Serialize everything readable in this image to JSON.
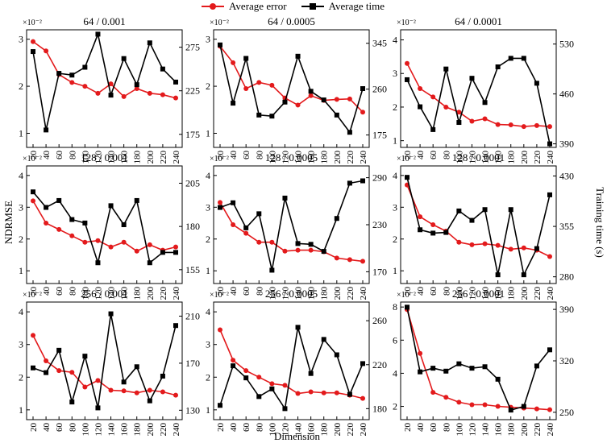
{
  "legend": {
    "error_label": "Average error",
    "time_label": "Average time",
    "error_color": "#e31a1c",
    "time_color": "#000000"
  },
  "axes_labels": {
    "xlabel": "Dimension",
    "ylabel_left": "NDRMSE",
    "ylabel_right": "Training time (s)",
    "left_scale_note": "×10⁻²"
  },
  "chart_data": [
    {
      "type": "line",
      "title": "64 / 0.001",
      "x": [
        20,
        40,
        60,
        80,
        100,
        120,
        140,
        160,
        180,
        200,
        220,
        240
      ],
      "y_left_ticks": [
        1,
        2,
        3
      ],
      "y_left_lim": [
        0.7,
        3.2
      ],
      "y_right_ticks": [
        175,
        225,
        275
      ],
      "y_right_lim": [
        160,
        295
      ],
      "series": [
        {
          "name": "Average error",
          "axis": "left",
          "values": [
            2.95,
            2.75,
            2.25,
            2.08,
            2.0,
            1.85,
            2.05,
            1.78,
            1.95,
            1.85,
            1.82,
            1.75
          ]
        },
        {
          "name": "Average time",
          "axis": "right",
          "values": [
            270,
            180,
            245,
            243,
            252,
            290,
            220,
            262,
            232,
            280,
            250,
            235
          ]
        }
      ]
    },
    {
      "type": "line",
      "title": "64 / 0.0005",
      "x": [
        20,
        40,
        60,
        80,
        100,
        120,
        140,
        160,
        180,
        200,
        220,
        240
      ],
      "y_left_ticks": [
        1,
        2,
        3
      ],
      "y_left_lim": [
        0.7,
        3.2
      ],
      "y_right_ticks": [
        175,
        260,
        345
      ],
      "y_right_lim": [
        152,
        370
      ],
      "series": [
        {
          "name": "Average error",
          "axis": "left",
          "values": [
            2.85,
            2.5,
            1.95,
            2.08,
            2.02,
            1.75,
            1.6,
            1.8,
            1.7,
            1.72,
            1.73,
            1.45
          ]
        },
        {
          "name": "Average time",
          "axis": "right",
          "values": [
            342,
            234,
            317,
            212,
            210,
            236,
            321,
            256,
            240,
            212,
            180,
            261
          ]
        }
      ]
    },
    {
      "type": "line",
      "title": "64 / 0.0001",
      "x": [
        20,
        40,
        60,
        80,
        100,
        120,
        140,
        160,
        180,
        200,
        220,
        240
      ],
      "y_left_ticks": [
        1,
        2,
        3,
        4
      ],
      "y_left_lim": [
        0.8,
        4.3
      ],
      "y_right_ticks": [
        390,
        460,
        530
      ],
      "y_right_lim": [
        385,
        550
      ],
      "series": [
        {
          "name": "Average error",
          "axis": "left",
          "values": [
            3.3,
            2.55,
            2.3,
            2.0,
            1.85,
            1.58,
            1.65,
            1.48,
            1.47,
            1.42,
            1.45,
            1.42
          ]
        },
        {
          "name": "Average time",
          "axis": "right",
          "values": [
            480,
            442,
            410,
            495,
            420,
            482,
            448,
            498,
            510,
            510,
            475,
            390
          ]
        }
      ]
    },
    {
      "type": "line",
      "title": "128 / 0.001",
      "x": [
        20,
        40,
        60,
        80,
        100,
        120,
        140,
        160,
        180,
        200,
        220,
        240
      ],
      "y_left_ticks": [
        1,
        2,
        3,
        4
      ],
      "y_left_lim": [
        0.6,
        4.3
      ],
      "y_right_ticks": [
        155,
        180,
        205
      ],
      "y_right_lim": [
        147,
        215
      ],
      "series": [
        {
          "name": "Average error",
          "axis": "left",
          "values": [
            3.2,
            2.5,
            2.3,
            2.1,
            1.9,
            1.95,
            1.75,
            1.9,
            1.62,
            1.82,
            1.65,
            1.75
          ]
        },
        {
          "name": "Average time",
          "axis": "right",
          "values": [
            200,
            191,
            195,
            184,
            182,
            159,
            192,
            181,
            195,
            159,
            165,
            165
          ]
        }
      ]
    },
    {
      "type": "line",
      "title": "128 / 0.0005",
      "x": [
        20,
        40,
        60,
        80,
        100,
        120,
        140,
        160,
        180,
        200,
        220,
        240
      ],
      "y_left_ticks": [
        1,
        2,
        3,
        4
      ],
      "y_left_lim": [
        0.6,
        4.3
      ],
      "y_right_ticks": [
        170,
        230,
        290
      ],
      "y_right_lim": [
        155,
        305
      ],
      "series": [
        {
          "name": "Average error",
          "axis": "left",
          "values": [
            3.15,
            2.45,
            2.18,
            1.9,
            1.9,
            1.62,
            1.65,
            1.65,
            1.6,
            1.4,
            1.35,
            1.3
          ]
        },
        {
          "name": "Average time",
          "axis": "right",
          "values": [
            252,
            258,
            226,
            244,
            172,
            264,
            206,
            205,
            196,
            238,
            283,
            286
          ]
        }
      ]
    },
    {
      "type": "line",
      "title": "128 / 0.0001",
      "x": [
        20,
        40,
        60,
        80,
        100,
        120,
        140,
        160,
        180,
        200,
        220,
        240
      ],
      "y_left_ticks": [
        1,
        2,
        3,
        4
      ],
      "y_left_lim": [
        0.6,
        4.3
      ],
      "y_right_ticks": [
        280,
        355,
        430
      ],
      "y_right_lim": [
        270,
        445
      ],
      "series": [
        {
          "name": "Average error",
          "axis": "left",
          "values": [
            3.7,
            2.7,
            2.45,
            2.25,
            1.9,
            1.82,
            1.85,
            1.8,
            1.68,
            1.72,
            1.65,
            1.45
          ]
        },
        {
          "name": "Average time",
          "axis": "right",
          "values": [
            428,
            350,
            345,
            346,
            378,
            364,
            380,
            283,
            380,
            283,
            322,
            402
          ]
        }
      ]
    },
    {
      "type": "line",
      "title": "256 / 0.001",
      "x": [
        20,
        40,
        60,
        80,
        100,
        120,
        140,
        160,
        180,
        200,
        220,
        240
      ],
      "y_left_ticks": [
        1,
        2,
        3,
        4
      ],
      "y_left_lim": [
        0.7,
        4.3
      ],
      "y_right_ticks": [
        130,
        170,
        210
      ],
      "y_right_lim": [
        122,
        222
      ],
      "series": [
        {
          "name": "Average error",
          "axis": "left",
          "values": [
            3.28,
            2.5,
            2.2,
            2.15,
            1.7,
            1.9,
            1.6,
            1.58,
            1.52,
            1.6,
            1.55,
            1.45
          ]
        },
        {
          "name": "Average time",
          "axis": "right",
          "values": [
            166,
            162,
            181,
            137,
            176,
            132,
            212,
            154,
            167,
            138,
            159,
            202
          ]
        }
      ]
    },
    {
      "type": "line",
      "title": "256 / 0.0005",
      "x": [
        20,
        40,
        60,
        80,
        100,
        120,
        140,
        160,
        180,
        200,
        220,
        240
      ],
      "y_left_ticks": [
        1,
        2,
        3,
        4
      ],
      "y_left_lim": [
        0.7,
        4.3
      ],
      "y_right_ticks": [
        180,
        220,
        260
      ],
      "y_right_lim": [
        170,
        277
      ],
      "series": [
        {
          "name": "Average error",
          "axis": "left",
          "values": [
            3.45,
            2.52,
            2.2,
            2.0,
            1.8,
            1.75,
            1.5,
            1.55,
            1.52,
            1.52,
            1.45,
            1.35
          ]
        },
        {
          "name": "Average time",
          "axis": "right",
          "values": [
            183,
            219,
            208,
            191,
            198,
            180,
            254,
            212,
            243,
            229,
            193,
            221
          ]
        }
      ]
    },
    {
      "type": "line",
      "title": "256 / 0.0001",
      "x": [
        20,
        40,
        60,
        80,
        100,
        120,
        140,
        160,
        180,
        200,
        220,
        240
      ],
      "y_left_ticks": [
        2,
        4,
        6,
        8
      ],
      "y_left_lim": [
        1.2,
        8.3
      ],
      "y_right_ticks": [
        250,
        320,
        390
      ],
      "y_right_lim": [
        240,
        400
      ],
      "series": [
        {
          "name": "Average error",
          "axis": "left",
          "values": [
            7.85,
            5.2,
            2.85,
            2.55,
            2.25,
            2.1,
            2.1,
            2.0,
            1.95,
            1.9,
            1.85,
            1.8
          ]
        },
        {
          "name": "Average time",
          "axis": "right",
          "values": [
            393,
            305,
            310,
            306,
            316,
            310,
            312,
            295,
            253,
            258,
            313,
            335
          ]
        }
      ]
    }
  ]
}
